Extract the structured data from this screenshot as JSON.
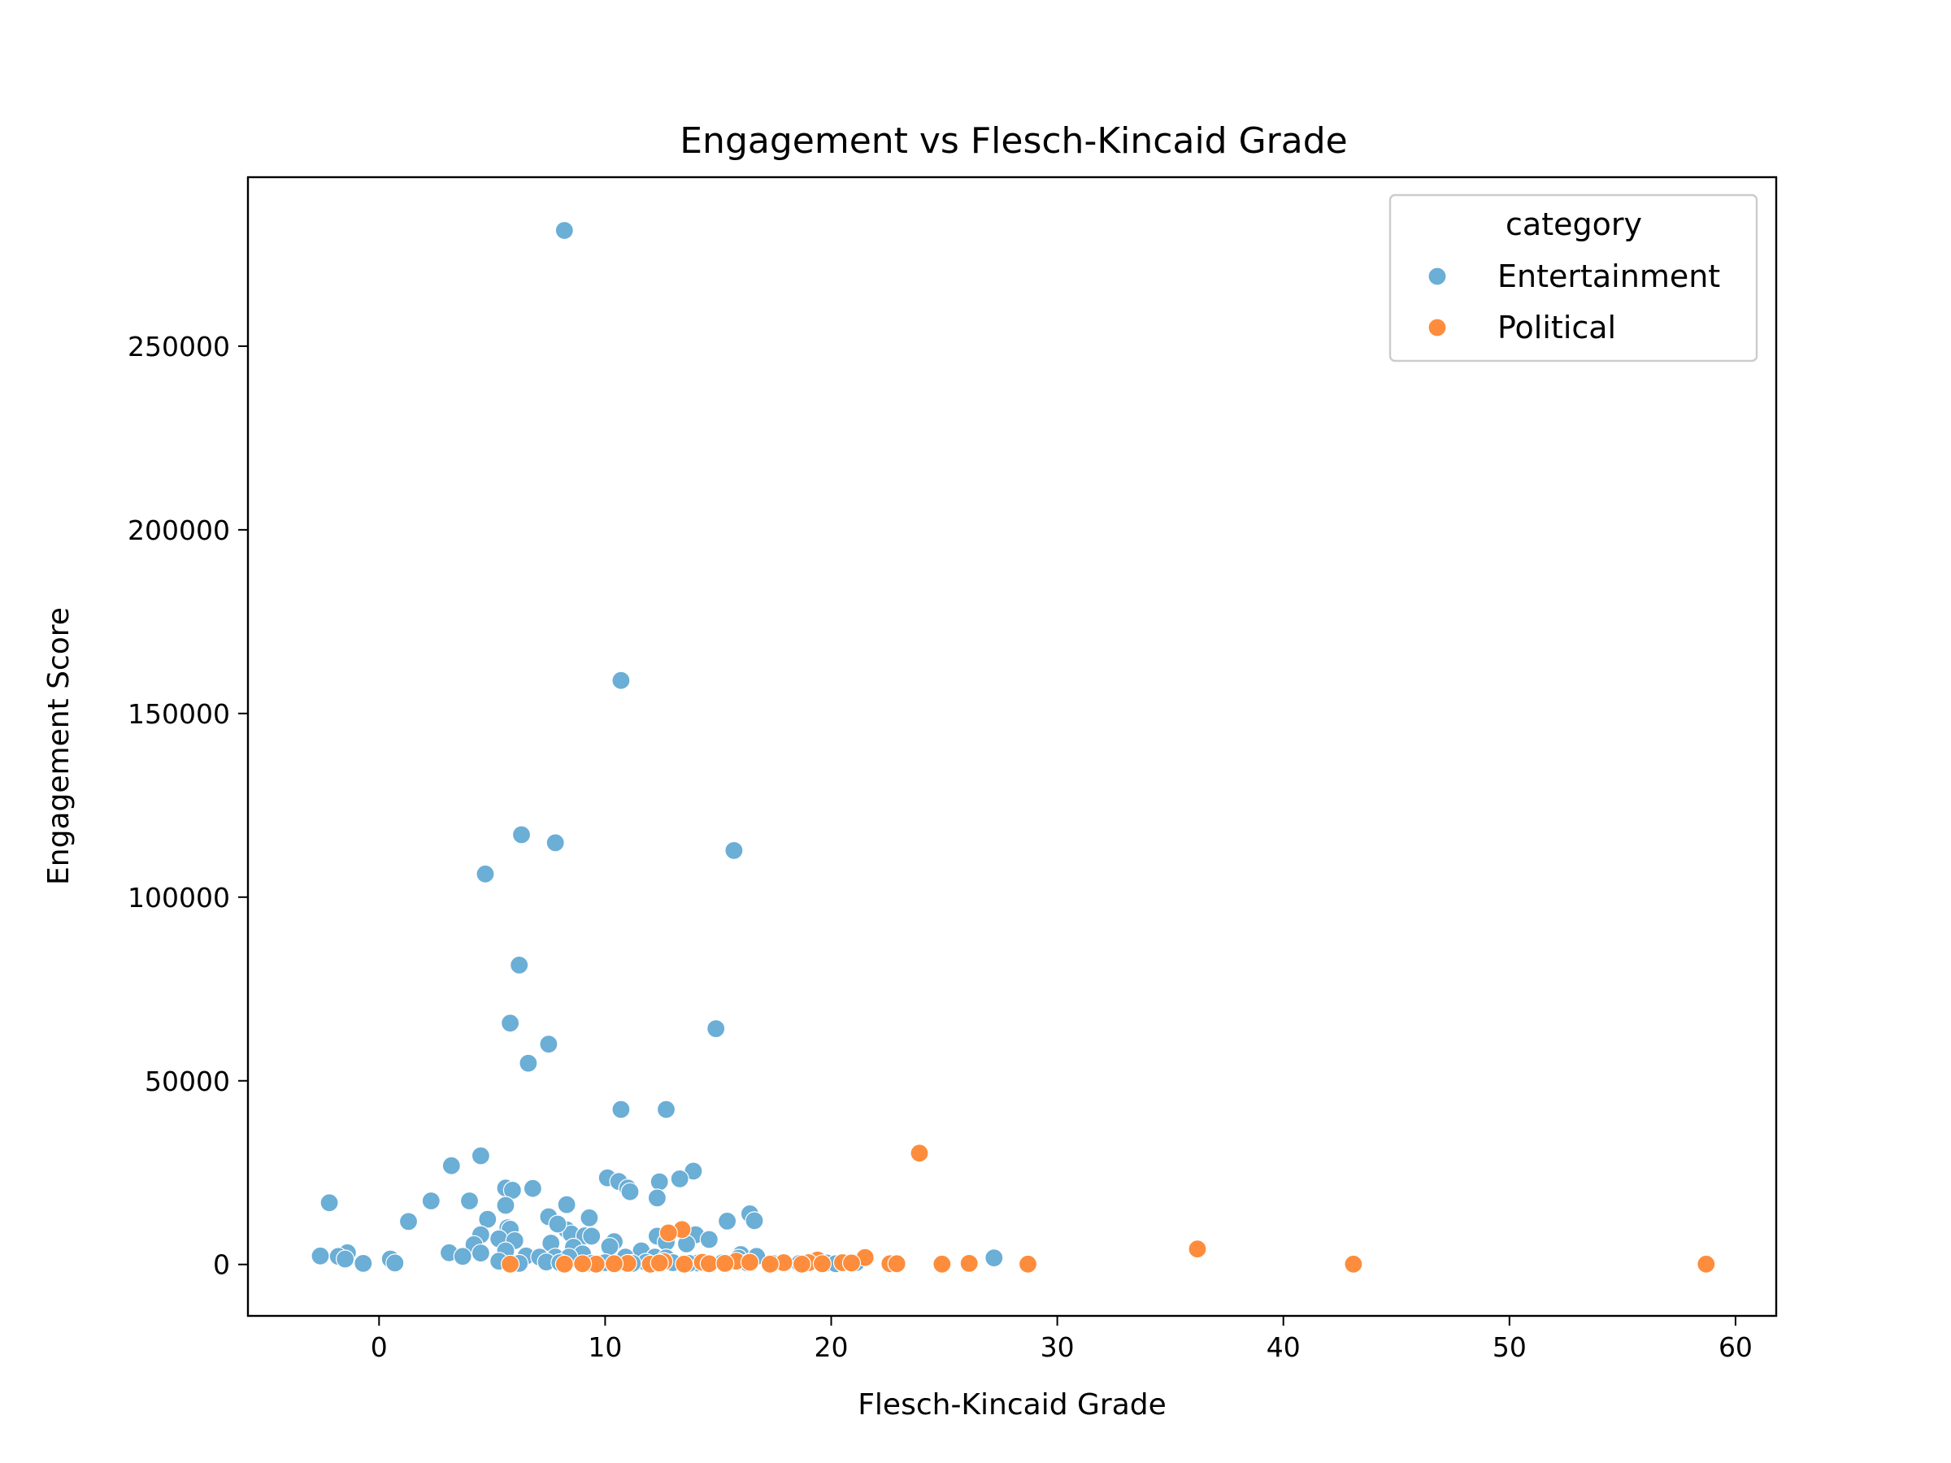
{
  "chart_data": {
    "type": "scatter",
    "title": "Engagement vs Flesch-Kincaid Grade",
    "xlabel": "Flesch-Kincaid Grade",
    "ylabel": "Engagement Score",
    "xlim": [
      -5.8,
      61.8
    ],
    "ylim": [
      -14000,
      296000
    ],
    "xticks": [
      0,
      10,
      20,
      30,
      40,
      50,
      60
    ],
    "yticks": [
      0,
      50000,
      100000,
      150000,
      200000,
      250000
    ],
    "grid": false,
    "legend": {
      "title": "category",
      "placement": "top-right"
    },
    "series": [
      {
        "name": "Entertainment",
        "color": "#6baed6",
        "points": [
          [
            8.2,
            281500
          ],
          [
            10.7,
            159000
          ],
          [
            6.3,
            117000
          ],
          [
            7.8,
            114800
          ],
          [
            15.7,
            112700
          ],
          [
            4.7,
            106300
          ],
          [
            6.2,
            81500
          ],
          [
            5.8,
            65700
          ],
          [
            14.9,
            64200
          ],
          [
            7.5,
            60000
          ],
          [
            6.6,
            54800
          ],
          [
            10.7,
            42200
          ],
          [
            12.7,
            42200
          ],
          [
            4.5,
            29600
          ],
          [
            3.2,
            26900
          ],
          [
            13.9,
            25400
          ],
          [
            10.1,
            23600
          ],
          [
            13.3,
            23300
          ],
          [
            10.6,
            22600
          ],
          [
            12.4,
            22500
          ],
          [
            11.0,
            20800
          ],
          [
            5.6,
            20800
          ],
          [
            6.8,
            20700
          ],
          [
            5.9,
            20200
          ],
          [
            11.1,
            19800
          ],
          [
            12.3,
            18100
          ],
          [
            2.3,
            17300
          ],
          [
            4.0,
            17300
          ],
          [
            -2.2,
            16800
          ],
          [
            5.6,
            16100
          ],
          [
            8.3,
            16300
          ],
          [
            16.4,
            13800
          ],
          [
            7.5,
            13000
          ],
          [
            9.3,
            12700
          ],
          [
            4.8,
            12300
          ],
          [
            15.4,
            11800
          ],
          [
            1.3,
            11700
          ],
          [
            16.6,
            11900
          ],
          [
            5.7,
            10000
          ],
          [
            8.3,
            9400
          ],
          [
            5.8,
            9600
          ],
          [
            4.5,
            8100
          ],
          [
            8.5,
            8300
          ],
          [
            9.1,
            7800
          ],
          [
            12.3,
            7700
          ],
          [
            14.0,
            8100
          ],
          [
            7.9,
            11000
          ],
          [
            9.4,
            7700
          ],
          [
            5.3,
            7000
          ],
          [
            6.0,
            6500
          ],
          [
            14.6,
            6800
          ],
          [
            10.4,
            6200
          ],
          [
            12.7,
            6100
          ],
          [
            13.6,
            5600
          ],
          [
            7.6,
            5800
          ],
          [
            4.2,
            5400
          ],
          [
            10.2,
            4900
          ],
          [
            8.6,
            4700
          ],
          [
            11.6,
            3700
          ],
          [
            5.6,
            3700
          ],
          [
            3.1,
            3200
          ],
          [
            -1.4,
            3200
          ],
          [
            4.5,
            3100
          ],
          [
            9.0,
            2900
          ],
          [
            16.0,
            2700
          ],
          [
            16.7,
            2200
          ],
          [
            -2.6,
            2300
          ],
          [
            -1.8,
            2200
          ],
          [
            3.7,
            2200
          ],
          [
            6.5,
            2300
          ],
          [
            7.1,
            2000
          ],
          [
            7.8,
            2000
          ],
          [
            8.4,
            2000
          ],
          [
            10.9,
            2000
          ],
          [
            12.2,
            2000
          ],
          [
            12.7,
            1800
          ],
          [
            15.9,
            1700
          ],
          [
            27.2,
            1800
          ],
          [
            -1.5,
            1500
          ],
          [
            0.5,
            1500
          ],
          [
            5.3,
            900
          ],
          [
            7.4,
            700
          ],
          [
            8.0,
            500
          ],
          [
            10.0,
            500
          ],
          [
            11.8,
            600
          ],
          [
            13.0,
            500
          ],
          [
            14.1,
            400
          ],
          [
            15.2,
            500
          ],
          [
            16.3,
            400
          ],
          [
            17.4,
            300
          ],
          [
            18.6,
            300
          ],
          [
            19.8,
            400
          ],
          [
            20.2,
            200
          ],
          [
            -0.7,
            300
          ],
          [
            0.7,
            400
          ],
          [
            6.2,
            300
          ],
          [
            9.4,
            300
          ],
          [
            11.2,
            300
          ],
          [
            13.7,
            300
          ],
          [
            21.1,
            500
          ]
        ]
      },
      {
        "name": "Political",
        "color": "#fd8d3c",
        "points": [
          [
            23.9,
            30300
          ],
          [
            13.4,
            9500
          ],
          [
            12.8,
            8600
          ],
          [
            36.2,
            4200
          ],
          [
            21.5,
            1900
          ],
          [
            19.4,
            1200
          ],
          [
            15.8,
            900
          ],
          [
            12.6,
            800
          ],
          [
            16.4,
            600
          ],
          [
            17.9,
            500
          ],
          [
            19.0,
            500
          ],
          [
            20.5,
            500
          ],
          [
            14.3,
            600
          ],
          [
            22.6,
            200
          ],
          [
            22.9,
            200
          ],
          [
            24.9,
            100
          ],
          [
            26.1,
            300
          ],
          [
            28.7,
            100
          ],
          [
            43.1,
            100
          ],
          [
            58.7,
            100
          ],
          [
            5.8,
            100
          ],
          [
            8.2,
            100
          ],
          [
            9.6,
            100
          ],
          [
            11.0,
            300
          ],
          [
            12.0,
            100
          ],
          [
            13.5,
            100
          ],
          [
            14.6,
            200
          ],
          [
            15.3,
            300
          ],
          [
            17.3,
            100
          ],
          [
            18.7,
            100
          ],
          [
            19.6,
            200
          ],
          [
            20.9,
            400
          ],
          [
            9.0,
            200
          ],
          [
            10.4,
            200
          ],
          [
            12.4,
            400
          ]
        ]
      }
    ]
  }
}
